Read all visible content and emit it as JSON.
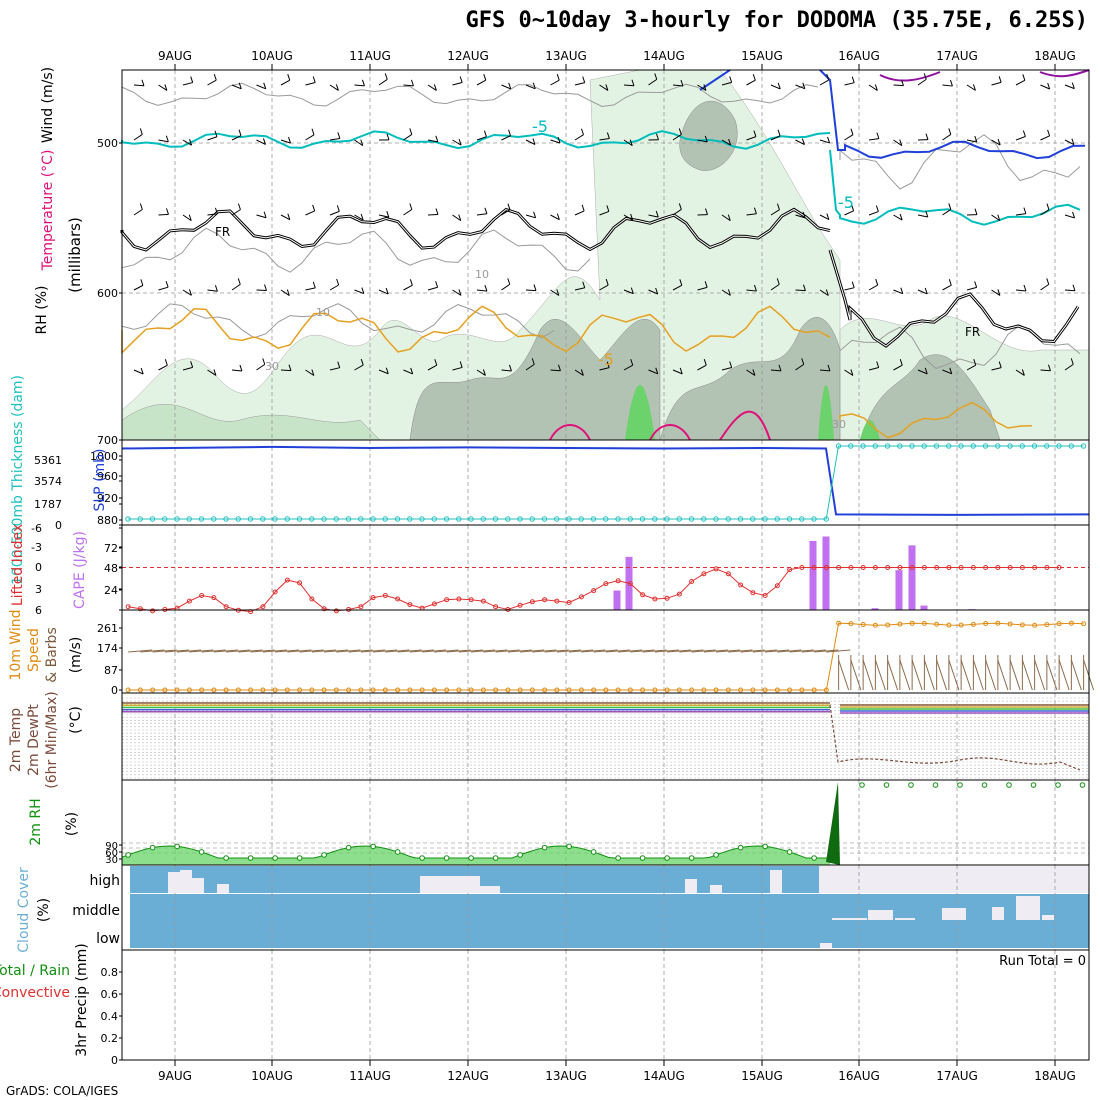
{
  "title": "GFS 0~10day 3-hourly for DODOMA (35.75E, 6.25S)",
  "footer": "GrADS: COLA/IGES",
  "dates": [
    "9AUG",
    "10AUG",
    "11AUG",
    "12AUG",
    "13AUG",
    "14AUG",
    "15AUG",
    "16AUG",
    "17AUG",
    "18AUG"
  ],
  "colors": {
    "grid": "#999999",
    "rh_light": "#e3f3e3",
    "rh_mid": "#c8e4c8",
    "rh_dark": "#b3c3b3",
    "rh_bright": "#6cd26c",
    "temp_cyan": "#00bdbd",
    "temp_orange": "#e6a020",
    "temp_magenta": "#e0107a",
    "temp_blue": "#2040d8",
    "temp_purple": "#9010a0",
    "cloud_blue": "#6aaed6",
    "cloud_white": "#f0ecf4",
    "cape": "#c070f0",
    "lifted": "#e03030",
    "wind": "#e08a10",
    "barb": "#8b6a4a",
    "rh2m": "#109010",
    "slp": "#2040d8",
    "thick": "#20c0c0"
  },
  "panels": {
    "upper": {
      "ylabels": [
        "Wind (m/s)",
        "Temperature (°C)",
        "RH (%)"
      ],
      "unit": "(millibars)",
      "levels": [
        "500",
        "600",
        "700"
      ],
      "contour_labels": [
        "-5",
        "-5",
        "FR",
        "FR",
        "10",
        "10",
        "-5",
        "30",
        "30"
      ]
    },
    "slp": {
      "label_left": "1000-500mb Thickness (dam)",
      "label_right": "SLP (mb)",
      "left_ticks": [
        "5361",
        "3574",
        "1787",
        "0"
      ],
      "right_ticks": [
        "1000",
        "960",
        "920",
        "880"
      ]
    },
    "cape": {
      "label_left": "Lifted Index",
      "label_right": "CAPE (J/kg)",
      "left_ticks": [
        "-6",
        "-3",
        "0",
        "3",
        "6"
      ],
      "right_ticks": [
        "72",
        "48",
        "24"
      ]
    },
    "wind": {
      "label_a": "10m Wind",
      "label_b": "Speed",
      "label_c": "& Barbs",
      "unit": "(m/s)",
      "ticks": [
        "261",
        "174",
        "87",
        "0"
      ]
    },
    "temp2m": {
      "label_a": "2m Temp",
      "label_b": "2m DewPt",
      "label_c": "(6hr Min/Max)",
      "unit": "(°C)"
    },
    "rh2m": {
      "label": "2m RH",
      "unit": "(%)",
      "ticks": [
        "90",
        "60",
        "30"
      ]
    },
    "cloud": {
      "label": "Cloud Cover",
      "unit": "(%)",
      "levels": [
        "high",
        "middle",
        "low"
      ]
    },
    "precip": {
      "label_a": "3hr Precip (mm)",
      "label_b": "Total / Rain",
      "label_c": "Convective",
      "run_total": "Run Total = 0",
      "ticks": [
        "0.8",
        "0.6",
        "0.4",
        "0.2",
        "0"
      ]
    }
  },
  "chart_data": [
    {
      "type": "line",
      "title": "Lifted Index / CAPE",
      "x": [
        "8AUG21",
        "9AUG00",
        "9AUG03",
        "9AUG06",
        "9AUG09",
        "9AUG12",
        "9AUG15",
        "9AUG18",
        "9AUG21",
        "10AUG00",
        "10AUG03",
        "10AUG06",
        "10AUG09",
        "10AUG12",
        "10AUG15",
        "10AUG18",
        "10AUG21",
        "11AUG00",
        "11AUG03",
        "11AUG06",
        "11AUG09",
        "11AUG12",
        "11AUG15",
        "11AUG18",
        "11AUG21",
        "12AUG00",
        "12AUG03",
        "12AUG06",
        "12AUG09",
        "12AUG12",
        "12AUG15",
        "12AUG18",
        "12AUG21",
        "13AUG00",
        "13AUG03",
        "13AUG06",
        "13AUG09",
        "13AUG12",
        "13AUG15",
        "13AUG18",
        "13AUG21",
        "14AUG00",
        "14AUG03",
        "14AUG06",
        "14AUG09",
        "14AUG12",
        "14AUG15",
        "14AUG18",
        "14AUG21",
        "15AUG00",
        "15AUG03",
        "15AUG06",
        "15AUG09",
        "15AUG12",
        "15AUG15",
        "15AUG18",
        "15AUG21",
        "16AUG00",
        "16AUG03",
        "16AUG06",
        "16AUG09",
        "16AUG12",
        "16AUG15",
        "16AUG18",
        "16AUG21",
        "17AUG00",
        "17AUG03",
        "17AUG06",
        "17AUG09",
        "17AUG12",
        "17AUG15",
        "17AUG18",
        "17AUG21",
        "18AUG00",
        "18AUG03",
        "18AUG06",
        "18AUG09"
      ],
      "series": [
        {
          "name": "Lifted Index",
          "values": [
            5.6,
            5.9,
            6.2,
            6.0,
            5.8,
            4.8,
            4.0,
            4.3,
            5.6,
            6.1,
            6.3,
            5.6,
            3.5,
            1.8,
            2.2,
            4.5,
            5.9,
            6.2,
            6.0,
            5.6,
            4.3,
            4.0,
            4.5,
            5.3,
            5.8,
            5.2,
            4.6,
            4.5,
            4.6,
            4.8,
            5.6,
            6.0,
            5.4,
            4.9,
            4.6,
            4.8,
            5.0,
            4.2,
            3.3,
            2.3,
            1.9,
            2.3,
            3.9,
            4.5,
            4.4,
            3.8,
            2.0,
            0.9,
            0.2,
            0.9,
            2.5,
            3.6,
            4.0,
            2.6,
            0.3,
            0,
            0,
            0,
            0,
            0,
            0,
            0,
            0,
            0,
            0,
            0,
            0,
            0,
            0,
            0,
            0,
            0,
            0,
            0,
            0,
            0,
            0
          ]
        }
      ],
      "ylim": [
        6,
        -6
      ]
    },
    {
      "type": "bar",
      "title": "CAPE (J/kg)",
      "categories": [
        "13AUG12",
        "13AUG15",
        "15AUG15",
        "15AUG18",
        "16AUG06",
        "16AUG09",
        "16AUG12",
        "16AUG15",
        "16AUG18"
      ],
      "values": [
        22,
        60,
        78,
        83,
        2,
        45,
        73,
        5,
        1
      ],
      "ylim": [
        0,
        96
      ]
    },
    {
      "type": "line",
      "title": "SLP (mb)",
      "x": [
        "9AUG",
        "10AUG",
        "11AUG",
        "12AUG",
        "13AUG",
        "14AUG",
        "15AUG",
        "15AUG18",
        "16AUG",
        "17AUG",
        "18AUG"
      ],
      "series": [
        {
          "name": "SLP (mb)",
          "values": [
            1004,
            1007,
            1005,
            1006,
            1005,
            1004,
            1005,
            1004,
            880,
            879,
            880
          ]
        },
        {
          "name": "1000-500mb Thickness (dam)",
          "values": [
            0,
            0,
            0,
            0,
            0,
            0,
            0,
            0,
            5361,
            5361,
            5361
          ]
        }
      ]
    },
    {
      "type": "line",
      "title": "10m Wind Speed & Barbs",
      "x": [
        "9AUG",
        "10AUG",
        "11AUG",
        "12AUG",
        "13AUG",
        "14AUG",
        "15AUG",
        "15AUG18",
        "16AUG",
        "17AUG",
        "18AUG"
      ],
      "series": [
        {
          "name": "Speed",
          "values": [
            0,
            0,
            0,
            0,
            0,
            0,
            0,
            0,
            261,
            263,
            261
          ]
        }
      ],
      "ylim": [
        0,
        300
      ]
    },
    {
      "type": "area",
      "title": "Cloud Cover (%)",
      "categories": [
        "high",
        "middle",
        "low"
      ]
    }
  ]
}
